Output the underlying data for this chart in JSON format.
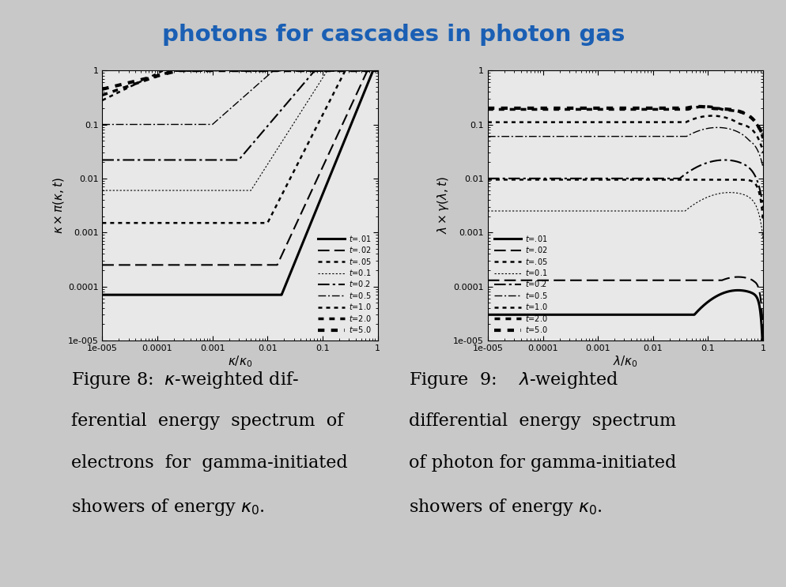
{
  "background_color": "#c8c8c8",
  "title": "photons for cascades in photon gas",
  "title_color": "#1a5fb4",
  "fig_width": 9.95,
  "fig_height": 7.43,
  "plot1": {
    "ylabel": "$\\kappa \\times \\pi(\\kappa,t)$",
    "xlabel": "$\\kappa/\\kappa_0$",
    "xlim": [
      1e-05,
      1
    ],
    "ylim": [
      1e-05,
      1
    ],
    "facecolor": "#e8e8e8",
    "curves": [
      {
        "t": "=.01",
        "flat": 7e-05,
        "rs": 0.018,
        "re": 2.5,
        "pk": 1.0,
        "ls": "solid",
        "lw": 2.2
      },
      {
        "t": "=.02",
        "flat": 0.00025,
        "rs": 0.015,
        "re": 2.2,
        "pk": 1.0,
        "ls": "dashed",
        "lw": 1.5
      },
      {
        "t": "=.05",
        "flat": 0.0015,
        "rs": 0.01,
        "re": 2.0,
        "pk": 1.0,
        "ls": "dotted",
        "lw": 1.8
      },
      {
        "t": "=0.1",
        "flat": 0.006,
        "rs": 0.005,
        "re": 1.6,
        "pk": 1.0,
        "ls": "dotted",
        "lw": 0.8
      },
      {
        "t": "=0.2",
        "flat": 0.022,
        "rs": 0.003,
        "re": 1.2,
        "pk": 1.0,
        "ls": "dashdot",
        "lw": 1.5
      },
      {
        "t": "=0.5",
        "flat": 0.1,
        "rs": 0.001,
        "re": 0.9,
        "pk": 1.0,
        "ls": "dashdot",
        "lw": 1.0
      },
      {
        "t": "=1.0",
        "flat": 0.28,
        "rs": 1e-05,
        "re": 0.5,
        "pk": 1.0,
        "ls": "dotted",
        "lw": 1.8
      },
      {
        "t": "=2.0",
        "flat": 0.35,
        "rs": 1e-05,
        "re": 0.35,
        "pk": 1.0,
        "ls": "dotted",
        "lw": 2.5
      },
      {
        "t": "=5.0",
        "flat": 0.45,
        "rs": 1e-05,
        "re": 0.25,
        "pk": 1.0,
        "ls": "dotted",
        "lw": 3.0
      }
    ]
  },
  "plot2": {
    "ylabel": "$\\lambda \\times \\gamma(\\lambda,t)$",
    "xlabel": "$\\lambda/\\kappa_0$",
    "xlim": [
      1e-05,
      1
    ],
    "ylim": [
      1e-05,
      1
    ],
    "facecolor": "#e8e8e8",
    "curves": [
      {
        "t": "=.01",
        "flat": 3e-05,
        "peak_x": 0.35,
        "peak_y": 8.5e-05,
        "sigma": 0.55,
        "drop": 12.0,
        "ls": "solid",
        "lw": 2.2
      },
      {
        "t": "=.02",
        "flat": 0.00013,
        "peak_x": 0.35,
        "peak_y": 0.00015,
        "sigma": 0.55,
        "drop": 10.0,
        "ls": "dashed",
        "lw": 1.5
      },
      {
        "t": "=.05",
        "flat": 0.0095,
        "peak_x": 0.3,
        "peak_y": 0.0095,
        "sigma": 0.6,
        "drop": 7.0,
        "ls": "dotted",
        "lw": 1.8
      },
      {
        "t": "=0.1",
        "flat": 0.0025,
        "peak_x": 0.25,
        "peak_y": 0.0055,
        "sigma": 0.65,
        "drop": 5.5,
        "ls": "dotted",
        "lw": 0.8
      },
      {
        "t": "=0.2",
        "flat": 0.01,
        "peak_x": 0.2,
        "peak_y": 0.022,
        "sigma": 0.65,
        "drop": 4.5,
        "ls": "dashdot",
        "lw": 1.5
      },
      {
        "t": "=0.5",
        "flat": 0.06,
        "peak_x": 0.15,
        "peak_y": 0.088,
        "sigma": 0.65,
        "drop": 3.5,
        "ls": "dashdot",
        "lw": 1.0
      },
      {
        "t": "=1.0",
        "flat": 0.11,
        "peak_x": 0.12,
        "peak_y": 0.145,
        "sigma": 0.65,
        "drop": 3.0,
        "ls": "dotted",
        "lw": 1.8
      },
      {
        "t": "=2.0",
        "flat": 0.19,
        "peak_x": 0.09,
        "peak_y": 0.215,
        "sigma": 0.65,
        "drop": 2.5,
        "ls": "dotted",
        "lw": 2.5
      },
      {
        "t": "=5.0",
        "flat": 0.2,
        "peak_x": 0.07,
        "peak_y": 0.215,
        "sigma": 0.65,
        "drop": 2.2,
        "ls": "dotted",
        "lw": 3.0
      }
    ]
  }
}
